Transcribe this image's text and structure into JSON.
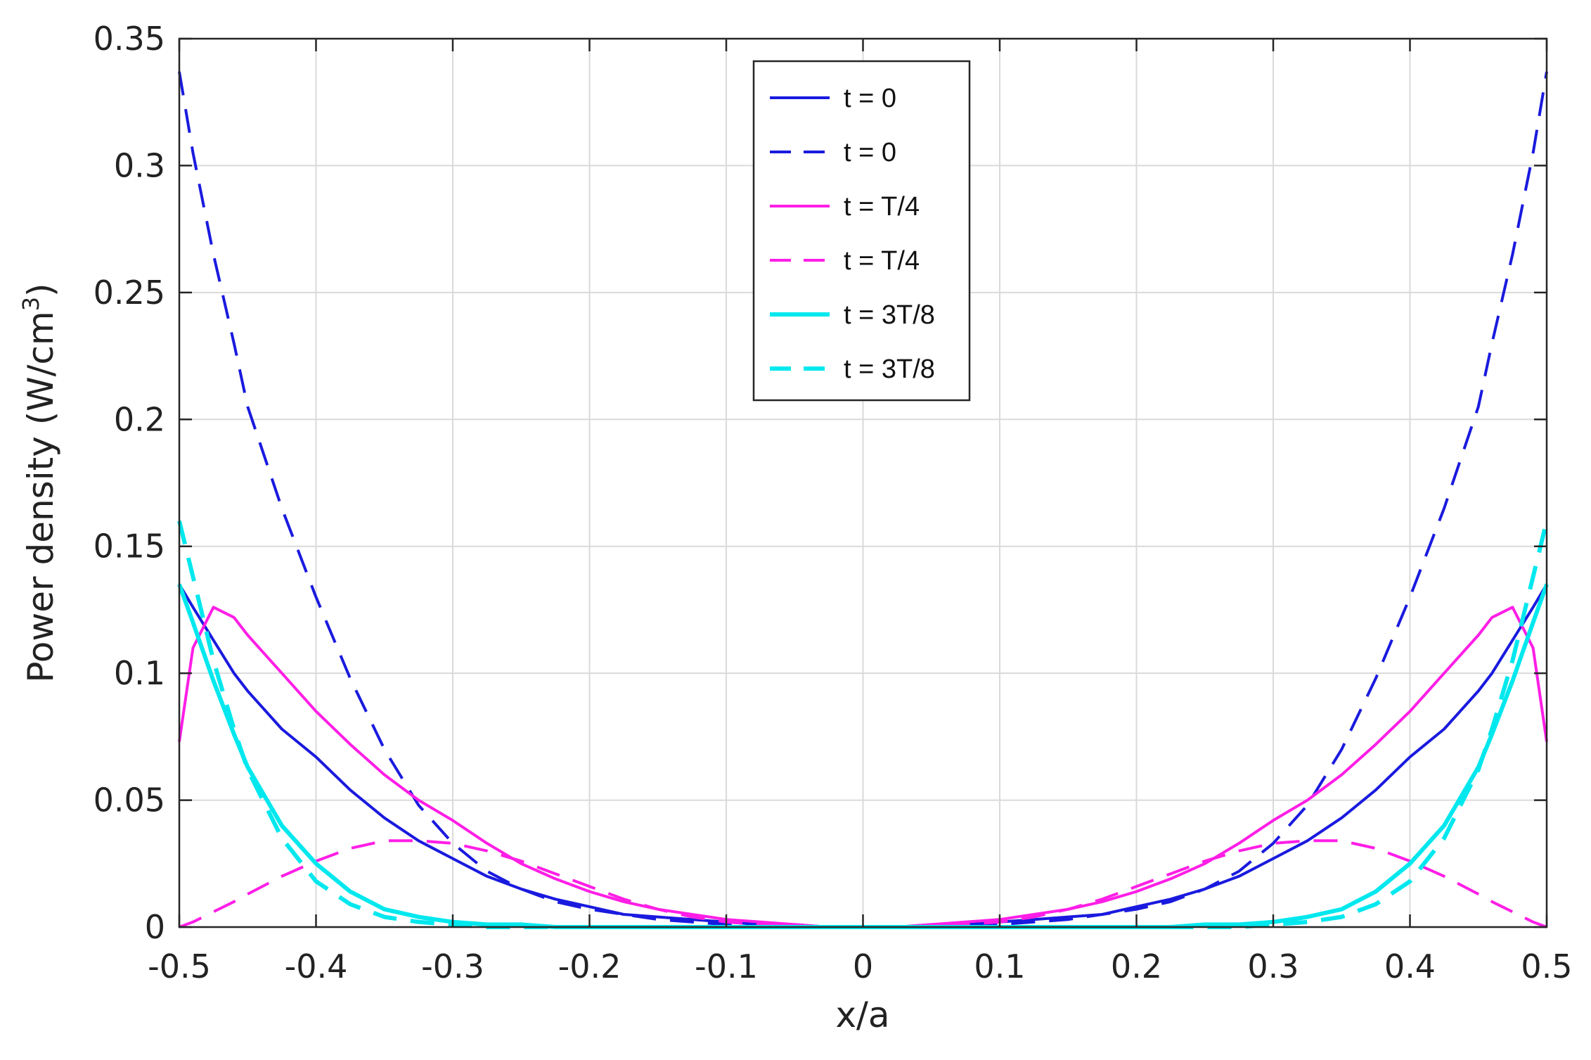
{
  "chart_data": {
    "type": "line",
    "title": "",
    "xlabel": "x/a",
    "ylabel_main": "Power density (W/cm",
    "ylabel_sup": "3",
    "ylabel_close": ")",
    "xlim": [
      -0.5,
      0.5
    ],
    "ylim": [
      0,
      0.35
    ],
    "xticks": [
      "-0.5",
      "-0.4",
      "-0.3",
      "-0.2",
      "-0.1",
      "0",
      "0.1",
      "0.2",
      "0.3",
      "0.4",
      "0.5"
    ],
    "yticks": [
      "0",
      "0.05",
      "0.1",
      "0.15",
      "0.2",
      "0.25",
      "0.3",
      "0.35"
    ],
    "grid": true,
    "legend_position": "top-center",
    "x": [
      -0.5,
      -0.49,
      -0.475,
      -0.46,
      -0.45,
      -0.425,
      -0.4,
      -0.375,
      -0.35,
      -0.325,
      -0.3,
      -0.275,
      -0.25,
      -0.225,
      -0.2,
      -0.175,
      -0.15,
      -0.125,
      -0.1,
      -0.075,
      -0.05,
      -0.025,
      0,
      0.025,
      0.05,
      0.075,
      0.1,
      0.125,
      0.15,
      0.175,
      0.2,
      0.225,
      0.25,
      0.275,
      0.3,
      0.325,
      0.35,
      0.375,
      0.4,
      0.425,
      0.45,
      0.46,
      0.475,
      0.49,
      0.5
    ],
    "series": [
      {
        "name": "t = 0",
        "color": "#1a1adf",
        "dash": "solid",
        "values": [
          0.135,
          0.126,
          0.113,
          0.1,
          0.093,
          0.078,
          0.067,
          0.054,
          0.043,
          0.034,
          0.027,
          0.02,
          0.015,
          0.011,
          0.008,
          0.005,
          0.004,
          0.003,
          0.002,
          0.001,
          0.001,
          0.0,
          0.0,
          0.0,
          0.001,
          0.001,
          0.002,
          0.003,
          0.004,
          0.005,
          0.008,
          0.011,
          0.015,
          0.02,
          0.027,
          0.034,
          0.043,
          0.054,
          0.067,
          0.078,
          0.093,
          0.1,
          0.113,
          0.126,
          0.135
        ]
      },
      {
        "name": "t = 0",
        "color": "#1a1adf",
        "dash": "dashed",
        "values": [
          0.337,
          0.305,
          0.265,
          0.23,
          0.205,
          0.165,
          0.13,
          0.098,
          0.07,
          0.048,
          0.033,
          0.022,
          0.015,
          0.01,
          0.007,
          0.005,
          0.003,
          0.002,
          0.001,
          0.001,
          0.0,
          0.0,
          0.0,
          0.0,
          0.0,
          0.001,
          0.001,
          0.002,
          0.003,
          0.005,
          0.007,
          0.01,
          0.015,
          0.022,
          0.033,
          0.048,
          0.07,
          0.098,
          0.13,
          0.165,
          0.205,
          0.23,
          0.265,
          0.305,
          0.337
        ]
      },
      {
        "name": "t = T/4",
        "color": "#ff1ee6",
        "dash": "solid",
        "values": [
          0.073,
          0.11,
          0.126,
          0.122,
          0.115,
          0.1,
          0.085,
          0.072,
          0.06,
          0.05,
          0.042,
          0.033,
          0.025,
          0.019,
          0.014,
          0.01,
          0.007,
          0.005,
          0.003,
          0.002,
          0.001,
          0.0,
          0.0,
          0.0,
          0.001,
          0.002,
          0.003,
          0.005,
          0.007,
          0.01,
          0.014,
          0.019,
          0.025,
          0.033,
          0.042,
          0.05,
          0.06,
          0.072,
          0.085,
          0.1,
          0.115,
          0.122,
          0.126,
          0.11,
          0.073
        ]
      },
      {
        "name": "t = T/4",
        "color": "#ff1ee6",
        "dash": "dashed",
        "values": [
          0.0,
          0.002,
          0.006,
          0.01,
          0.013,
          0.02,
          0.026,
          0.031,
          0.034,
          0.034,
          0.033,
          0.03,
          0.026,
          0.021,
          0.016,
          0.011,
          0.007,
          0.004,
          0.002,
          0.001,
          0.0,
          0.0,
          0.0,
          0.0,
          0.0,
          0.001,
          0.002,
          0.004,
          0.007,
          0.011,
          0.016,
          0.021,
          0.026,
          0.03,
          0.033,
          0.034,
          0.034,
          0.031,
          0.026,
          0.02,
          0.013,
          0.01,
          0.006,
          0.002,
          0.0
        ]
      },
      {
        "name": "t = 3T/8",
        "color": "#00e8ee",
        "dash": "solid",
        "values": [
          0.135,
          0.12,
          0.097,
          0.076,
          0.063,
          0.04,
          0.025,
          0.014,
          0.007,
          0.004,
          0.002,
          0.001,
          0.001,
          0.0,
          0.0,
          0.0,
          0.0,
          0.0,
          0.0,
          0.0,
          0.0,
          0.0,
          0.0,
          0.0,
          0.0,
          0.0,
          0.0,
          0.0,
          0.0,
          0.0,
          0.0,
          0.0,
          0.001,
          0.001,
          0.002,
          0.004,
          0.007,
          0.014,
          0.025,
          0.04,
          0.063,
          0.076,
          0.097,
          0.12,
          0.135
        ]
      },
      {
        "name": "t = 3T/8",
        "color": "#00e8ee",
        "dash": "dashed",
        "values": [
          0.16,
          0.138,
          0.105,
          0.078,
          0.062,
          0.035,
          0.018,
          0.009,
          0.004,
          0.002,
          0.001,
          0.0,
          0.0,
          0.0,
          0.0,
          0.0,
          0.0,
          0.0,
          0.0,
          0.0,
          0.0,
          0.0,
          0.0,
          0.0,
          0.0,
          0.0,
          0.0,
          0.0,
          0.0,
          0.0,
          0.0,
          0.0,
          0.0,
          0.0,
          0.001,
          0.002,
          0.004,
          0.009,
          0.018,
          0.035,
          0.062,
          0.078,
          0.105,
          0.138,
          0.16
        ]
      }
    ]
  }
}
